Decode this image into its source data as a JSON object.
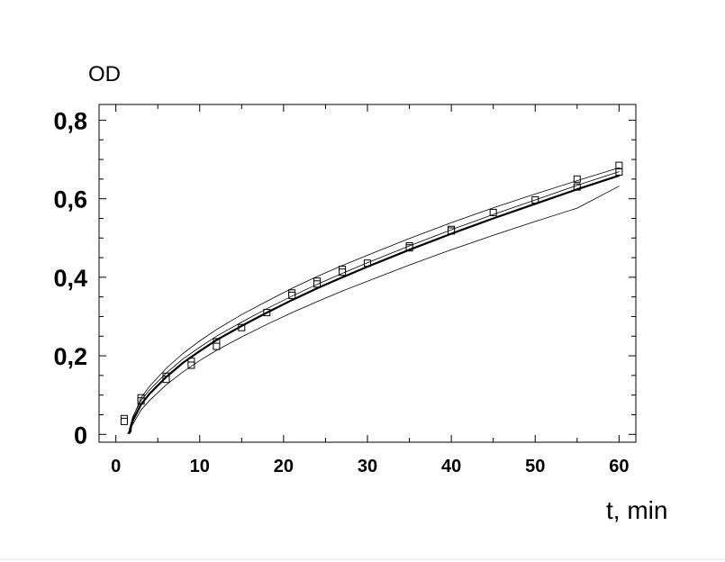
{
  "chart_data": {
    "type": "scatter",
    "title": "",
    "xlabel": "t, min",
    "ylabel": "OD",
    "xlim": [
      -2,
      62
    ],
    "ylim": [
      -0.02,
      0.84
    ],
    "x_ticks": [
      0,
      10,
      20,
      30,
      40,
      50,
      60
    ],
    "x_tick_labels": [
      "0",
      "10",
      "20",
      "30",
      "40",
      "50",
      "60"
    ],
    "y_ticks": [
      0,
      0.2,
      0.4,
      0.6,
      0.8
    ],
    "y_tick_labels": [
      "0",
      "0,2",
      "0,4",
      "0,6",
      "0,8"
    ],
    "grid": false,
    "legend": "none",
    "series": [
      {
        "kind": "points",
        "marker": "square",
        "x": [
          1,
          1,
          3,
          3,
          6,
          6,
          9,
          9,
          12,
          12,
          15,
          18,
          21,
          21,
          24,
          24,
          27,
          27,
          30,
          35,
          35,
          40,
          40,
          45,
          50,
          55,
          55,
          60,
          60
        ],
        "y": [
          0.04,
          0.033,
          0.093,
          0.085,
          0.148,
          0.14,
          0.186,
          0.176,
          0.236,
          0.224,
          0.272,
          0.31,
          0.36,
          0.354,
          0.39,
          0.383,
          0.42,
          0.413,
          0.436,
          0.48,
          0.475,
          0.522,
          0.518,
          0.565,
          0.597,
          0.65,
          0.63,
          0.685,
          0.668
        ]
      },
      {
        "kind": "line",
        "style": "thick",
        "x": [
          1.6,
          2,
          3,
          4,
          6,
          8,
          10,
          12,
          15,
          18,
          21,
          24,
          27,
          30,
          35,
          40,
          45,
          50,
          55,
          60
        ],
        "y": [
          0.003,
          0.034,
          0.076,
          0.103,
          0.146,
          0.182,
          0.212,
          0.24,
          0.276,
          0.31,
          0.342,
          0.372,
          0.4,
          0.427,
          0.47,
          0.511,
          0.55,
          0.587,
          0.624,
          0.659
        ]
      },
      {
        "kind": "line",
        "style": "thin",
        "x": [
          1.6,
          2,
          3,
          4,
          6,
          8,
          10,
          12,
          15,
          18,
          21,
          24,
          27,
          30,
          35,
          40,
          45,
          50,
          55,
          60
        ],
        "y": [
          0.012,
          0.044,
          0.086,
          0.113,
          0.156,
          0.192,
          0.222,
          0.25,
          0.286,
          0.32,
          0.352,
          0.382,
          0.41,
          0.437,
          0.48,
          0.521,
          0.56,
          0.597,
          0.634,
          0.669
        ]
      },
      {
        "kind": "line",
        "style": "thin",
        "x": [
          1.8,
          2,
          3,
          4,
          6,
          8,
          10,
          12,
          15,
          18,
          21,
          24,
          27,
          30,
          35,
          40,
          45,
          50,
          55,
          60
        ],
        "y": [
          0.005,
          0.04,
          0.093,
          0.122,
          0.168,
          0.206,
          0.238,
          0.267,
          0.305,
          0.339,
          0.372,
          0.402,
          0.43,
          0.456,
          0.499,
          0.539,
          0.577,
          0.612,
          0.646,
          0.679
        ]
      },
      {
        "kind": "line",
        "style": "thin",
        "x": [
          1.4,
          2,
          3,
          4,
          6,
          8,
          10,
          12,
          15,
          18,
          21,
          24,
          27,
          30,
          35,
          40,
          45,
          50,
          55,
          60
        ],
        "y": [
          0.002,
          0.025,
          0.062,
          0.086,
          0.126,
          0.159,
          0.188,
          0.214,
          0.248,
          0.28,
          0.31,
          0.338,
          0.365,
          0.39,
          0.431,
          0.47,
          0.507,
          0.542,
          0.576,
          0.632
        ]
      }
    ]
  }
}
